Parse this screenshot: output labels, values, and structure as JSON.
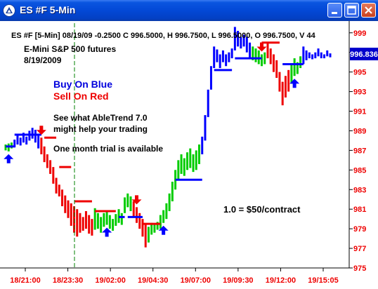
{
  "window": {
    "title": "ES #F 5-Min",
    "buttons": [
      "minimize",
      "maximize",
      "close"
    ]
  },
  "chart_data": {
    "type": "bar",
    "header": "ES #F [5-Min] 08/19/09 -0.2500 C 996.5000, H 996.7500, L 996.5000, O 996.7500, V 44",
    "instrument_line1": "E-Mini S&P 500 futures",
    "instrument_line2": "8/19/2009",
    "buy_text": "Buy On Blue",
    "sell_text": "Sell On Red",
    "promo_line1": "See what AbleTrend 7.0",
    "promo_line2": "might help your trading",
    "trial_text": "One month trial is available",
    "contract_text": "1.0 = $50/contract",
    "last_price": "996.836",
    "y_ticks": [
      "999",
      "997",
      "995",
      "993",
      "991",
      "989",
      "987",
      "985",
      "983",
      "981",
      "979",
      "977",
      "975"
    ],
    "ylim": [
      975,
      1000.2
    ],
    "x_ticks": [
      "18/21:00",
      "18/23:30",
      "19/02:00",
      "19/04:30",
      "19/07:00",
      "19/09:30",
      "19/12:00",
      "19/15:05"
    ],
    "colors": {
      "up_trend": "#00cc00",
      "down_trend": "#ee0000",
      "support": "#0000ff",
      "resistance": "#ee0000",
      "axis_text": "#ee0000",
      "price_box": "#0000cc",
      "divider": "#008000"
    },
    "bars": [
      {
        "h": 987.6,
        "l": 987.0,
        "c": "green"
      },
      {
        "h": 987.7,
        "l": 986.9,
        "c": "green"
      },
      {
        "h": 987.8,
        "l": 987.2,
        "c": "green"
      },
      {
        "h": 988.1,
        "l": 987.3,
        "c": "blue"
      },
      {
        "h": 988.6,
        "l": 987.6,
        "c": "blue"
      },
      {
        "h": 988.3,
        "l": 987.5,
        "c": "blue"
      },
      {
        "h": 988.8,
        "l": 987.8,
        "c": "blue"
      },
      {
        "h": 988.4,
        "l": 987.6,
        "c": "blue"
      },
      {
        "h": 989.0,
        "l": 988.0,
        "c": "blue"
      },
      {
        "h": 989.3,
        "l": 988.2,
        "c": "blue"
      },
      {
        "h": 989.1,
        "l": 987.8,
        "c": "blue"
      },
      {
        "h": 988.6,
        "l": 987.2,
        "c": "blue"
      },
      {
        "h": 988.3,
        "l": 986.6,
        "c": "red"
      },
      {
        "h": 987.4,
        "l": 985.8,
        "c": "red"
      },
      {
        "h": 986.6,
        "l": 985.2,
        "c": "red"
      },
      {
        "h": 986.0,
        "l": 984.6,
        "c": "red"
      },
      {
        "h": 985.3,
        "l": 983.6,
        "c": "red"
      },
      {
        "h": 984.2,
        "l": 982.6,
        "c": "red"
      },
      {
        "h": 983.5,
        "l": 982.3,
        "c": "red"
      },
      {
        "h": 983.0,
        "l": 981.3,
        "c": "red"
      },
      {
        "h": 982.4,
        "l": 980.6,
        "c": "red"
      },
      {
        "h": 981.9,
        "l": 980.1,
        "c": "red"
      },
      {
        "h": 981.6,
        "l": 979.3,
        "c": "red"
      },
      {
        "h": 981.3,
        "l": 978.6,
        "c": "red"
      },
      {
        "h": 981.0,
        "l": 978.2,
        "c": "red"
      },
      {
        "h": 980.6,
        "l": 978.6,
        "c": "red"
      },
      {
        "h": 980.2,
        "l": 978.8,
        "c": "red"
      },
      {
        "h": 980.8,
        "l": 979.0,
        "c": "red"
      },
      {
        "h": 980.4,
        "l": 978.5,
        "c": "red"
      },
      {
        "h": 980.0,
        "l": 978.3,
        "c": "red"
      },
      {
        "h": 981.1,
        "l": 978.9,
        "c": "green"
      },
      {
        "h": 980.6,
        "l": 979.0,
        "c": "green"
      },
      {
        "h": 980.2,
        "l": 978.6,
        "c": "green"
      },
      {
        "h": 980.6,
        "l": 979.2,
        "c": "green"
      },
      {
        "h": 980.9,
        "l": 979.4,
        "c": "green"
      },
      {
        "h": 980.4,
        "l": 979.0,
        "c": "green"
      },
      {
        "h": 980.0,
        "l": 978.8,
        "c": "green"
      },
      {
        "h": 980.5,
        "l": 979.3,
        "c": "green"
      },
      {
        "h": 981.0,
        "l": 979.6,
        "c": "green"
      },
      {
        "h": 980.6,
        "l": 979.4,
        "c": "green"
      },
      {
        "h": 982.2,
        "l": 980.6,
        "c": "green"
      },
      {
        "h": 982.6,
        "l": 981.2,
        "c": "green"
      },
      {
        "h": 982.3,
        "l": 980.8,
        "c": "green"
      },
      {
        "h": 981.8,
        "l": 980.2,
        "c": "red"
      },
      {
        "h": 981.2,
        "l": 979.6,
        "c": "red"
      },
      {
        "h": 980.6,
        "l": 979.0,
        "c": "red"
      },
      {
        "h": 980.0,
        "l": 978.2,
        "c": "red"
      },
      {
        "h": 979.4,
        "l": 977.1,
        "c": "red"
      },
      {
        "h": 979.2,
        "l": 977.6,
        "c": "green"
      },
      {
        "h": 979.6,
        "l": 978.4,
        "c": "green"
      },
      {
        "h": 979.4,
        "l": 978.6,
        "c": "green"
      },
      {
        "h": 979.7,
        "l": 978.9,
        "c": "green"
      },
      {
        "h": 980.4,
        "l": 979.0,
        "c": "green"
      },
      {
        "h": 980.9,
        "l": 979.6,
        "c": "green"
      },
      {
        "h": 981.6,
        "l": 980.0,
        "c": "green"
      },
      {
        "h": 982.6,
        "l": 980.8,
        "c": "green"
      },
      {
        "h": 983.8,
        "l": 981.8,
        "c": "green"
      },
      {
        "h": 985.0,
        "l": 983.0,
        "c": "green"
      },
      {
        "h": 986.0,
        "l": 984.0,
        "c": "green"
      },
      {
        "h": 986.6,
        "l": 984.6,
        "c": "green"
      },
      {
        "h": 986.2,
        "l": 984.4,
        "c": "green"
      },
      {
        "h": 986.8,
        "l": 985.0,
        "c": "green"
      },
      {
        "h": 987.2,
        "l": 985.2,
        "c": "green"
      },
      {
        "h": 986.6,
        "l": 984.8,
        "c": "green"
      },
      {
        "h": 987.0,
        "l": 985.0,
        "c": "green"
      },
      {
        "h": 987.6,
        "l": 985.6,
        "c": "green"
      },
      {
        "h": 988.4,
        "l": 986.6,
        "c": "blue"
      },
      {
        "h": 990.6,
        "l": 988.0,
        "c": "blue"
      },
      {
        "h": 993.2,
        "l": 990.4,
        "c": "blue"
      },
      {
        "h": 995.6,
        "l": 993.2,
        "c": "blue"
      },
      {
        "h": 997.6,
        "l": 995.4,
        "c": "blue"
      },
      {
        "h": 997.3,
        "l": 996.0,
        "c": "blue"
      },
      {
        "h": 996.8,
        "l": 995.4,
        "c": "blue"
      },
      {
        "h": 997.2,
        "l": 996.0,
        "c": "blue"
      },
      {
        "h": 996.8,
        "l": 995.6,
        "c": "blue"
      },
      {
        "h": 997.0,
        "l": 996.0,
        "c": "blue"
      },
      {
        "h": 997.4,
        "l": 996.4,
        "c": "blue"
      },
      {
        "h": 999.6,
        "l": 997.2,
        "c": "blue"
      },
      {
        "h": 999.2,
        "l": 997.6,
        "c": "blue"
      },
      {
        "h": 998.6,
        "l": 997.4,
        "c": "blue"
      },
      {
        "h": 998.8,
        "l": 997.6,
        "c": "blue"
      },
      {
        "h": 998.6,
        "l": 997.0,
        "c": "blue"
      },
      {
        "h": 998.0,
        "l": 996.4,
        "c": "blue"
      },
      {
        "h": 997.6,
        "l": 996.2,
        "c": "green"
      },
      {
        "h": 997.4,
        "l": 996.0,
        "c": "green"
      },
      {
        "h": 997.2,
        "l": 995.8,
        "c": "green"
      },
      {
        "h": 996.8,
        "l": 995.6,
        "c": "green"
      },
      {
        "h": 997.0,
        "l": 995.8,
        "c": "green"
      },
      {
        "h": 998.0,
        "l": 996.4,
        "c": "red"
      },
      {
        "h": 997.4,
        "l": 995.8,
        "c": "red"
      },
      {
        "h": 996.8,
        "l": 995.0,
        "c": "red"
      },
      {
        "h": 996.2,
        "l": 994.4,
        "c": "red"
      },
      {
        "h": 995.0,
        "l": 993.0,
        "c": "red"
      },
      {
        "h": 994.0,
        "l": 991.6,
        "c": "red"
      },
      {
        "h": 994.6,
        "l": 992.4,
        "c": "red"
      },
      {
        "h": 995.2,
        "l": 993.0,
        "c": "red"
      },
      {
        "h": 995.8,
        "l": 993.8,
        "c": "green"
      },
      {
        "h": 996.4,
        "l": 994.6,
        "c": "green"
      },
      {
        "h": 996.0,
        "l": 994.8,
        "c": "green"
      },
      {
        "h": 996.6,
        "l": 995.4,
        "c": "green"
      },
      {
        "h": 997.6,
        "l": 995.8,
        "c": "blue"
      },
      {
        "h": 997.2,
        "l": 996.2,
        "c": "blue"
      },
      {
        "h": 997.0,
        "l": 996.4,
        "c": "blue"
      },
      {
        "h": 996.8,
        "l": 996.3,
        "c": "blue"
      },
      {
        "h": 997.0,
        "l": 996.4,
        "c": "blue"
      },
      {
        "h": 997.4,
        "l": 996.6,
        "c": "blue"
      },
      {
        "h": 997.0,
        "l": 996.4,
        "c": "blue"
      },
      {
        "h": 996.8,
        "l": 996.4,
        "c": "blue"
      },
      {
        "h": 997.2,
        "l": 996.6,
        "c": "blue"
      },
      {
        "h": 996.9,
        "l": 996.5,
        "c": "blue"
      }
    ],
    "stops": [
      {
        "from": 0,
        "to": 3,
        "p": 987.4,
        "c": "blue"
      },
      {
        "from": 3,
        "to": 12,
        "p": 988.6,
        "c": "blue"
      },
      {
        "from": 13,
        "to": 17,
        "p": 988.3,
        "c": "red"
      },
      {
        "from": 18,
        "to": 22,
        "p": 985.3,
        "c": "red"
      },
      {
        "from": 23,
        "to": 29,
        "p": 981.8,
        "c": "red"
      },
      {
        "from": 30,
        "to": 37,
        "p": 980.8,
        "c": "red"
      },
      {
        "from": 38,
        "to": 40,
        "p": 980.2,
        "c": "blue"
      },
      {
        "from": 41,
        "to": 46,
        "p": 980.2,
        "c": "blue"
      },
      {
        "from": 46,
        "to": 52,
        "p": 979.5,
        "c": "red"
      },
      {
        "from": 57,
        "to": 66,
        "p": 984.0,
        "c": "blue"
      },
      {
        "from": 70,
        "to": 76,
        "p": 995.2,
        "c": "blue"
      },
      {
        "from": 77,
        "to": 86,
        "p": 996.4,
        "c": "blue"
      },
      {
        "from": 86,
        "to": 92,
        "p": 998.0,
        "c": "red"
      },
      {
        "from": 93,
        "to": 100,
        "p": 995.8,
        "c": "blue"
      }
    ],
    "up_arrows": [
      1,
      34,
      53,
      97
    ],
    "down_arrows": [
      12,
      44,
      86
    ]
  }
}
